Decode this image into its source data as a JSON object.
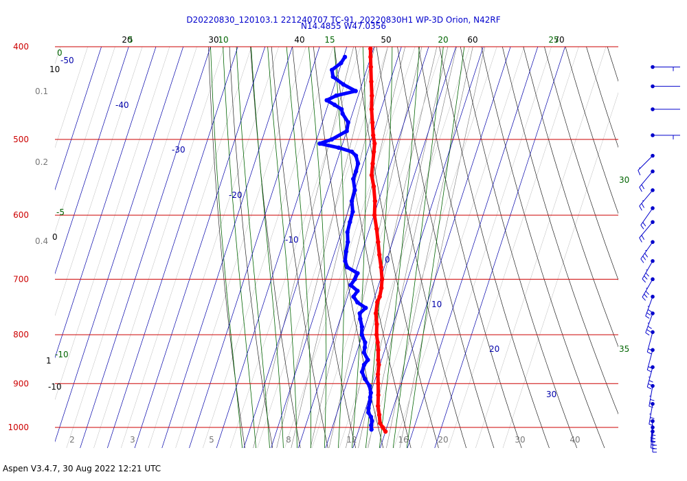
{
  "header": {
    "title_line1": "D20220830_120103.1 221240707 TC-91, 20220830H1 WP-3D Orion, N42RF",
    "title_line2": "N14.4855 W47.0356"
  },
  "footer": {
    "text": "Aspen V3.4.7, 30 Aug 2022  12:21 UTC"
  },
  "colors": {
    "temperature": "#ff0000",
    "dewpoint": "#0000ff",
    "isobar": "#cc0000",
    "isotherm": "#0000aa",
    "dry_adiabat": "#222222",
    "moist_adiabat": "#006400",
    "mixing_ratio": "#777777",
    "wind_barb": "#0000cc"
  },
  "chart_data": {
    "type": "skew-t log-p",
    "title": "D20220830_120103.1 221240707 TC-91, 20220830H1 WP-3D Orion, N42RF",
    "subtitle": "N14.4855 W47.0356",
    "pressure_levels": [
      400,
      500,
      600,
      700,
      800,
      900,
      1000
    ],
    "pressure_tick_labels": [
      "400",
      "500",
      "600",
      "700",
      "800",
      "900",
      "1000"
    ],
    "isotherm_labels": [
      "-50",
      "-40",
      "-30",
      "-20",
      "-10",
      "0",
      "10",
      "20",
      "30"
    ],
    "top_axis_labels": [
      "20",
      "30",
      "40",
      "50",
      "60",
      "70"
    ],
    "moist_adiabat_labels": [
      "5",
      "10",
      "15",
      "20",
      "25",
      "0",
      "-5",
      "-10",
      "30",
      "35"
    ],
    "left_axis_black_labels": [
      "10",
      "0",
      "-10",
      "1"
    ],
    "left_axis_gray_labels": [
      "0.1",
      "0.2",
      "0.4"
    ],
    "mixing_ratio_labels": [
      "2",
      "3",
      "5",
      "8",
      "12",
      "16",
      "20",
      "30",
      "40"
    ],
    "temperature_profile": [
      {
        "p": 1010,
        "t": 30.0
      },
      {
        "p": 1000,
        "t": 28.5
      },
      {
        "p": 990,
        "t": 27.0
      },
      {
        "p": 970,
        "t": 25.7
      },
      {
        "p": 950,
        "t": 24.2
      },
      {
        "p": 925,
        "t": 23.0
      },
      {
        "p": 900,
        "t": 21.6
      },
      {
        "p": 880,
        "t": 20.4
      },
      {
        "p": 860,
        "t": 19.6
      },
      {
        "p": 850,
        "t": 18.8
      },
      {
        "p": 830,
        "t": 17.6
      },
      {
        "p": 815,
        "t": 16.5
      },
      {
        "p": 800,
        "t": 15.2
      },
      {
        "p": 780,
        "t": 14.0
      },
      {
        "p": 760,
        "t": 12.4
      },
      {
        "p": 740,
        "t": 11.6
      },
      {
        "p": 730,
        "t": 11.8
      },
      {
        "p": 715,
        "t": 11.4
      },
      {
        "p": 700,
        "t": 10.6
      },
      {
        "p": 680,
        "t": 8.8
      },
      {
        "p": 660,
        "t": 6.7
      },
      {
        "p": 640,
        "t": 4.7
      },
      {
        "p": 620,
        "t": 2.6
      },
      {
        "p": 600,
        "t": 0.2
      },
      {
        "p": 580,
        "t": -1.3
      },
      {
        "p": 560,
        "t": -3.5
      },
      {
        "p": 545,
        "t": -5.6
      },
      {
        "p": 530,
        "t": -6.6
      },
      {
        "p": 515,
        "t": -7.6
      },
      {
        "p": 505,
        "t": -8.3
      },
      {
        "p": 495,
        "t": -9.8
      },
      {
        "p": 480,
        "t": -11.6
      },
      {
        "p": 465,
        "t": -13.5
      },
      {
        "p": 450,
        "t": -15.0
      },
      {
        "p": 435,
        "t": -16.9
      },
      {
        "p": 420,
        "t": -18.8
      },
      {
        "p": 410,
        "t": -20.1
      },
      {
        "p": 402,
        "t": -21.1
      }
    ],
    "dewpoint_profile": [
      {
        "p": 1005,
        "t": 24.6
      },
      {
        "p": 995,
        "t": 24.0
      },
      {
        "p": 985,
        "t": 23.8
      },
      {
        "p": 975,
        "t": 22.9
      },
      {
        "p": 965,
        "t": 21.5
      },
      {
        "p": 955,
        "t": 21.0
      },
      {
        "p": 940,
        "t": 20.7
      },
      {
        "p": 930,
        "t": 20.3
      },
      {
        "p": 920,
        "t": 20.0
      },
      {
        "p": 905,
        "t": 18.7
      },
      {
        "p": 890,
        "t": 16.2
      },
      {
        "p": 875,
        "t": 14.3
      },
      {
        "p": 860,
        "t": 14.2
      },
      {
        "p": 850,
        "t": 15.0
      },
      {
        "p": 835,
        "t": 12.7
      },
      {
        "p": 825,
        "t": 12.4
      },
      {
        "p": 815,
        "t": 11.9
      },
      {
        "p": 800,
        "t": 9.8
      },
      {
        "p": 785,
        "t": 8.9
      },
      {
        "p": 770,
        "t": 7.3
      },
      {
        "p": 760,
        "t": 6.5
      },
      {
        "p": 750,
        "t": 8.0
      },
      {
        "p": 740,
        "t": 4.3
      },
      {
        "p": 730,
        "t": 2.2
      },
      {
        "p": 720,
        "t": 3.0
      },
      {
        "p": 710,
        "t": -0.2
      },
      {
        "p": 700,
        "t": 0.6
      },
      {
        "p": 690,
        "t": 0.9
      },
      {
        "p": 680,
        "t": -3.6
      },
      {
        "p": 670,
        "t": -5.1
      },
      {
        "p": 655,
        "t": -5.9
      },
      {
        "p": 640,
        "t": -6.4
      },
      {
        "p": 625,
        "t": -7.7
      },
      {
        "p": 610,
        "t": -8.0
      },
      {
        "p": 595,
        "t": -8.2
      },
      {
        "p": 580,
        "t": -9.8
      },
      {
        "p": 565,
        "t": -10.0
      },
      {
        "p": 550,
        "t": -11.9
      },
      {
        "p": 540,
        "t": -11.8
      },
      {
        "p": 530,
        "t": -12.0
      },
      {
        "p": 520,
        "t": -13.7
      },
      {
        "p": 515,
        "t": -15.7
      },
      {
        "p": 510,
        "t": -21.0
      },
      {
        "p": 505,
        "t": -28.4
      },
      {
        "p": 500,
        "t": -24.5
      },
      {
        "p": 490,
        "t": -20.0
      },
      {
        "p": 480,
        "t": -20.5
      },
      {
        "p": 470,
        "t": -23.6
      },
      {
        "p": 465,
        "t": -24.5
      },
      {
        "p": 460,
        "t": -27.6
      },
      {
        "p": 455,
        "t": -31.0
      },
      {
        "p": 450,
        "t": -28.1
      },
      {
        "p": 445,
        "t": -21.5
      },
      {
        "p": 438,
        "t": -26.8
      },
      {
        "p": 430,
        "t": -31.5
      },
      {
        "p": 423,
        "t": -32.7
      },
      {
        "p": 416,
        "t": -30.2
      },
      {
        "p": 410,
        "t": -29.5
      }
    ],
    "wind_barbs": [
      {
        "p": 420,
        "dir": 90,
        "kt": 15
      },
      {
        "p": 440,
        "dir": 90,
        "kt": 20
      },
      {
        "p": 465,
        "dir": 90,
        "kt": 20
      },
      {
        "p": 495,
        "dir": 100,
        "kt": 15
      },
      {
        "p": 520,
        "dir": 135,
        "kt": 5
      },
      {
        "p": 540,
        "dir": 140,
        "kt": 20
      },
      {
        "p": 565,
        "dir": 140,
        "kt": 15
      },
      {
        "p": 590,
        "dir": 145,
        "kt": 20
      },
      {
        "p": 610,
        "dir": 140,
        "kt": 20
      },
      {
        "p": 640,
        "dir": 145,
        "kt": 25
      },
      {
        "p": 670,
        "dir": 150,
        "kt": 25
      },
      {
        "p": 700,
        "dir": 150,
        "kt": 25
      },
      {
        "p": 730,
        "dir": 160,
        "kt": 25
      },
      {
        "p": 760,
        "dir": 160,
        "kt": 25
      },
      {
        "p": 795,
        "dir": 165,
        "kt": 20
      },
      {
        "p": 830,
        "dir": 165,
        "kt": 20
      },
      {
        "p": 865,
        "dir": 165,
        "kt": 25
      },
      {
        "p": 905,
        "dir": 170,
        "kt": 25
      },
      {
        "p": 945,
        "dir": 170,
        "kt": 25
      },
      {
        "p": 985,
        "dir": 175,
        "kt": 25
      },
      {
        "p": 1000,
        "dir": 175,
        "kt": 25
      },
      {
        "p": 1010,
        "dir": 180,
        "kt": 25
      }
    ]
  }
}
